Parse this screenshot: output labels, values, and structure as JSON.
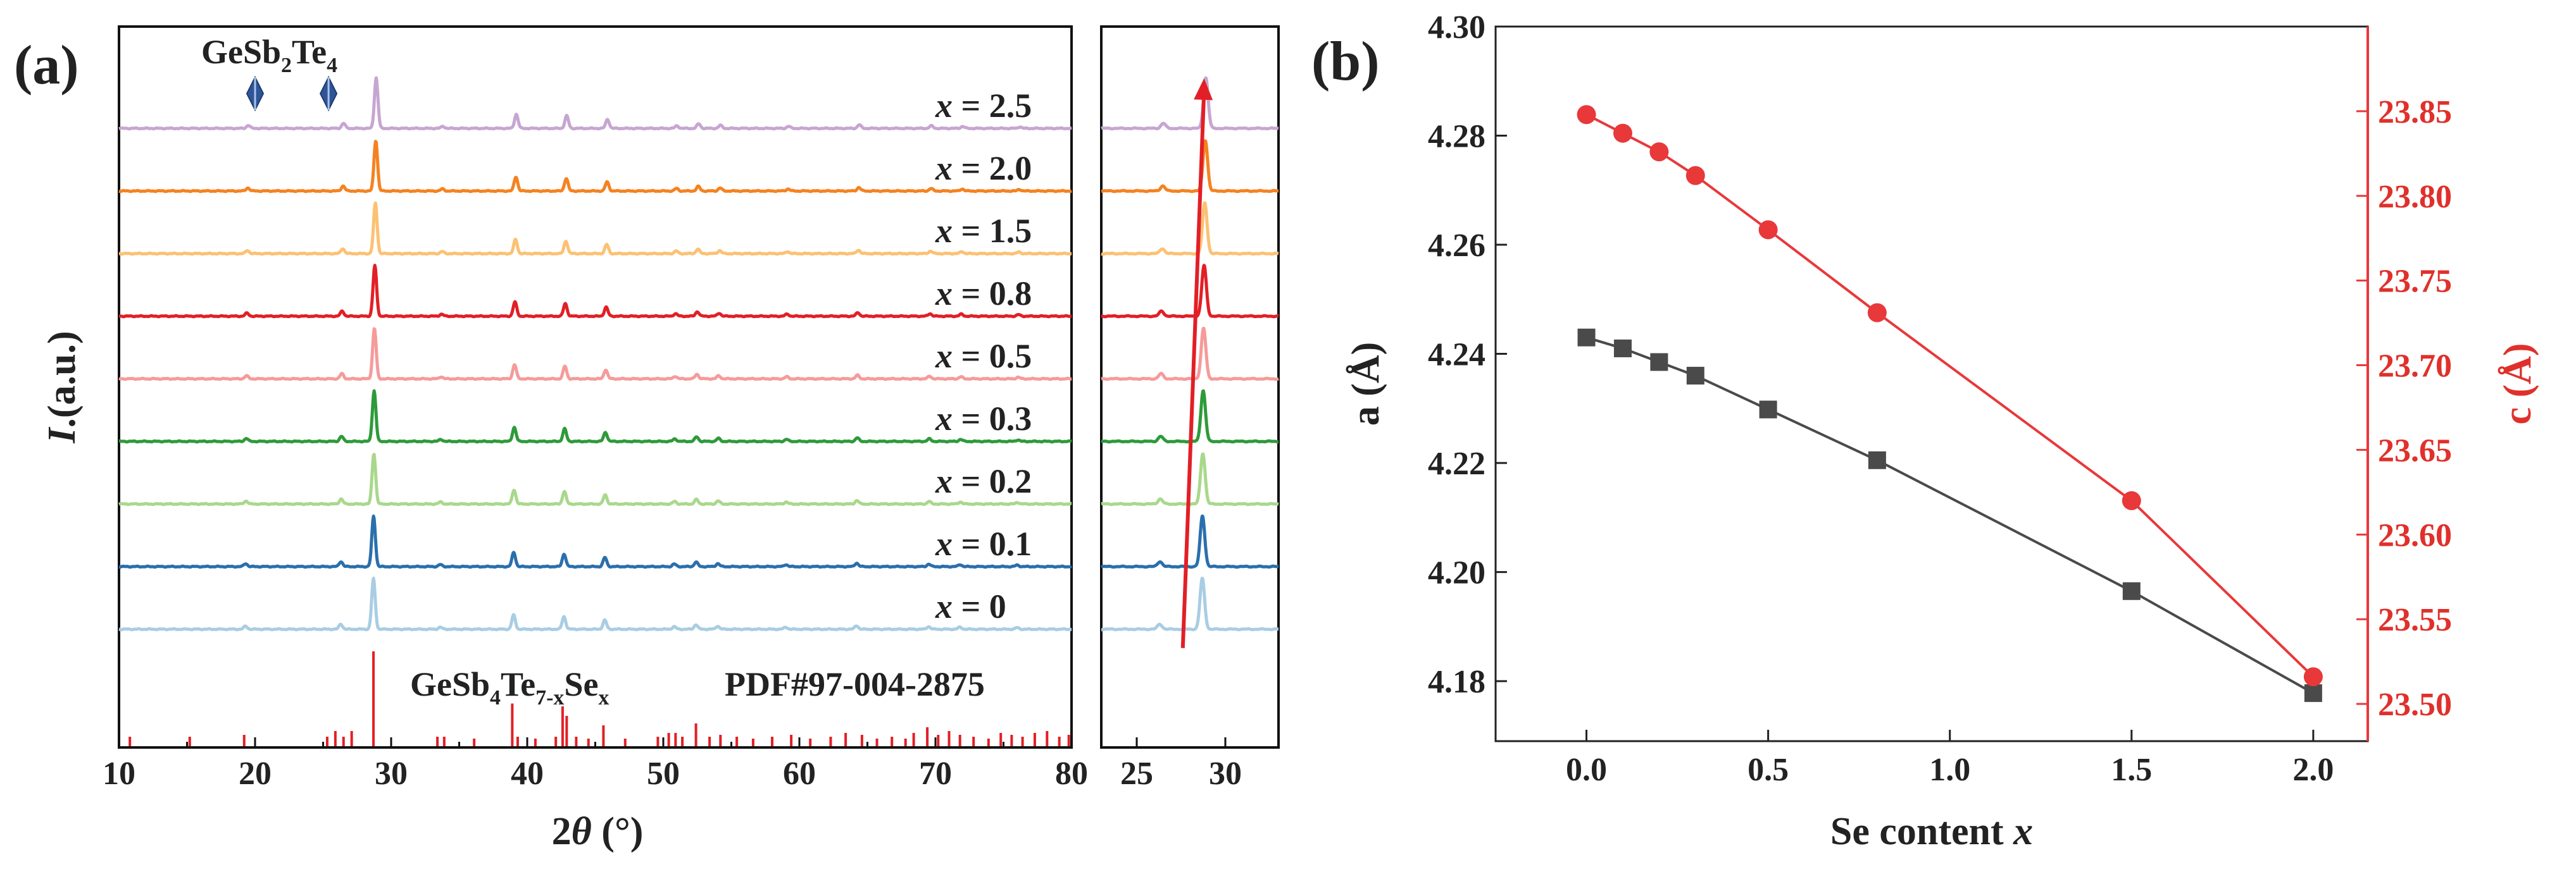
{
  "figure": {
    "panel_a_label": "(a)",
    "panel_b_label": "(b)"
  },
  "colors": {
    "x0": "#a9cde3",
    "x01": "#2a6fad",
    "x02": "#a9d88c",
    "x03": "#2e9a3a",
    "x05": "#f59b9a",
    "x08": "#e21f26",
    "x15": "#fcc173",
    "x20": "#f58220",
    "x25": "#c6a6d1",
    "reference": "#e21f26",
    "arrow": "#e21f26",
    "series_a": "#4a4a4a",
    "series_c": "#e8383a"
  },
  "chart_data": [
    {
      "id": "xrd-main",
      "type": "line",
      "xlabel_prefix": "2",
      "xlabel_symbol": "θ",
      "xlabel_unit": " (°)",
      "ylabel_italic": "I",
      "ylabel_rest": ".(a.u.)",
      "xlim": [
        10,
        80
      ],
      "xticks": [
        10,
        20,
        30,
        40,
        50,
        60,
        70,
        80
      ],
      "impurity_label": "GeSb",
      "impurity_sub1": "2",
      "impurity_mid": "Te",
      "impurity_sub2": "4",
      "impurity_markers_x": [
        20.0,
        25.4
      ],
      "reference_formula": "GeSb",
      "reference_sub1": "4",
      "reference_mid": "Te",
      "reference_sub2": "7-x",
      "reference_end": "Se",
      "reference_sub3": "x",
      "reference_pdf": "PDF#97-004-2875",
      "series": [
        {
          "name": "x = 2.5",
          "x_value": "2.5",
          "color_key": "x25",
          "shift": 0.2,
          "order": 8
        },
        {
          "name": "x = 2.0",
          "x_value": "2.0",
          "color_key": "x20",
          "shift": 0.17,
          "order": 7
        },
        {
          "name": "x = 1.5",
          "x_value": "1.5",
          "color_key": "x15",
          "shift": 0.14,
          "order": 6
        },
        {
          "name": "x = 0.8",
          "x_value": "0.8",
          "color_key": "x08",
          "shift": 0.1,
          "order": 5
        },
        {
          "name": "x = 0.5",
          "x_value": "0.5",
          "color_key": "x05",
          "shift": 0.07,
          "order": 4
        },
        {
          "name": "x = 0.3",
          "x_value": "0.3",
          "color_key": "x03",
          "shift": 0.05,
          "order": 3
        },
        {
          "name": "x = 0.2",
          "x_value": "0.2",
          "color_key": "x02",
          "shift": 0.03,
          "order": 2
        },
        {
          "name": "x = 0.1",
          "x_value": "0.1",
          "color_key": "x01",
          "shift": 0.01,
          "order": 1
        },
        {
          "name": "x = 0",
          "x_value": "0",
          "color_key": "x0",
          "shift": 0.0,
          "order": 0
        }
      ],
      "peaks": [
        {
          "x": 19.3,
          "h": 0.06
        },
        {
          "x": 26.3,
          "h": 0.1
        },
        {
          "x": 28.7,
          "h": 1.0
        },
        {
          "x": 33.6,
          "h": 0.04
        },
        {
          "x": 39.0,
          "h": 0.28
        },
        {
          "x": 42.7,
          "h": 0.25
        },
        {
          "x": 45.7,
          "h": 0.18
        },
        {
          "x": 50.8,
          "h": 0.05
        },
        {
          "x": 52.4,
          "h": 0.09
        },
        {
          "x": 54.0,
          "h": 0.06
        },
        {
          "x": 59.0,
          "h": 0.04
        },
        {
          "x": 64.2,
          "h": 0.07
        },
        {
          "x": 69.5,
          "h": 0.05
        },
        {
          "x": 71.8,
          "h": 0.04
        },
        {
          "x": 76.0,
          "h": 0.03
        }
      ],
      "reference_sticks": [
        [
          10.8,
          0.1
        ],
        [
          15.2,
          0.1
        ],
        [
          19.2,
          0.12
        ],
        [
          25.3,
          0.1
        ],
        [
          25.9,
          0.16
        ],
        [
          26.5,
          0.1
        ],
        [
          27.1,
          0.16
        ],
        [
          28.7,
          1.0
        ],
        [
          33.4,
          0.1
        ],
        [
          33.9,
          0.1
        ],
        [
          36.1,
          0.08
        ],
        [
          38.9,
          0.45
        ],
        [
          39.3,
          0.1
        ],
        [
          40.6,
          0.08
        ],
        [
          42.1,
          0.1
        ],
        [
          42.6,
          0.42
        ],
        [
          42.9,
          0.32
        ],
        [
          43.6,
          0.1
        ],
        [
          44.5,
          0.08
        ],
        [
          45.6,
          0.22
        ],
        [
          47.2,
          0.08
        ],
        [
          49.6,
          0.1
        ],
        [
          50.4,
          0.14
        ],
        [
          50.9,
          0.14
        ],
        [
          51.4,
          0.1
        ],
        [
          52.4,
          0.24
        ],
        [
          53.4,
          0.1
        ],
        [
          54.2,
          0.12
        ],
        [
          55.4,
          0.1
        ],
        [
          56.6,
          0.08
        ],
        [
          58.0,
          0.1
        ],
        [
          59.4,
          0.12
        ],
        [
          60.8,
          0.08
        ],
        [
          62.3,
          0.1
        ],
        [
          63.4,
          0.14
        ],
        [
          64.6,
          0.12
        ],
        [
          65.7,
          0.08
        ],
        [
          66.8,
          0.1
        ],
        [
          67.8,
          0.08
        ],
        [
          68.4,
          0.14
        ],
        [
          69.4,
          0.2
        ],
        [
          70.2,
          0.12
        ],
        [
          71.0,
          0.16
        ],
        [
          71.8,
          0.12
        ],
        [
          72.8,
          0.1
        ],
        [
          73.9,
          0.08
        ],
        [
          74.8,
          0.14
        ],
        [
          75.6,
          0.12
        ],
        [
          76.4,
          0.1
        ],
        [
          77.3,
          0.14
        ],
        [
          78.2,
          0.16
        ],
        [
          79.1,
          0.1
        ],
        [
          79.8,
          0.12
        ]
      ]
    },
    {
      "id": "xrd-zoom",
      "type": "line",
      "xlim": [
        23,
        33
      ],
      "xticks": [
        25,
        30
      ],
      "arrow": {
        "from": [
          27.6,
          -0.3
        ],
        "to": [
          28.8,
          8.8
        ]
      }
    },
    {
      "id": "lattice",
      "type": "line",
      "xlabel_prefix": "Se content ",
      "xlabel_italic": "x",
      "xlim": [
        -0.25,
        2.15
      ],
      "xticks": [
        0.0,
        0.5,
        1.0,
        1.5,
        2.0
      ],
      "xtick_labels": [
        "0.0",
        "0.5",
        "1.0",
        "1.5",
        "2.0"
      ],
      "left_axis": {
        "label": "a (Å)",
        "ylim": [
          4.169,
          4.3
        ],
        "ticks": [
          4.18,
          4.2,
          4.22,
          4.24,
          4.26,
          4.28,
          4.3
        ],
        "tick_labels": [
          "4.18",
          "4.20",
          "4.22",
          "4.24",
          "4.26",
          "4.28",
          "4.30"
        ]
      },
      "right_axis": {
        "label": "c (Å)",
        "ylim": [
          23.478,
          23.9
        ],
        "ticks": [
          23.5,
          23.55,
          23.6,
          23.65,
          23.7,
          23.75,
          23.8,
          23.85
        ],
        "tick_labels": [
          "23.50",
          "23.55",
          "23.60",
          "23.65",
          "23.70",
          "23.75",
          "23.80",
          "23.85"
        ]
      },
      "series": [
        {
          "axis": "left",
          "marker": "square",
          "color_key": "series_a",
          "x": [
            0.0,
            0.1,
            0.2,
            0.3,
            0.5,
            0.8,
            1.5,
            2.0
          ],
          "y": [
            4.243,
            4.241,
            4.2385,
            4.236,
            4.2298,
            4.2205,
            4.1965,
            4.1778
          ]
        },
        {
          "axis": "right",
          "marker": "circle",
          "color_key": "series_c",
          "x": [
            0.0,
            0.1,
            0.2,
            0.3,
            0.5,
            0.8,
            1.5,
            2.0
          ],
          "y": [
            23.848,
            23.837,
            23.826,
            23.812,
            23.78,
            23.731,
            23.62,
            23.516
          ]
        }
      ]
    }
  ]
}
